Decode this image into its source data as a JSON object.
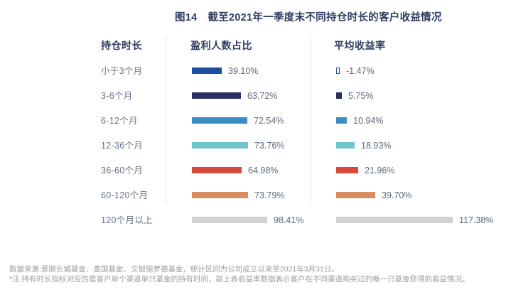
{
  "title": "图14　截至2021年一季度末不同持仓时长的客户收益情况",
  "columns": {
    "holding": "持仓时长",
    "profit_ratio": "盈利人数占比",
    "avg_return": "平均收益率"
  },
  "notes": {
    "source": "数据来源:景顺长城基金、富国基金、交银施罗德基金，统计区间为公司成立以来至2021年3月31日。",
    "footnote": "*注:持有时长指标对应的是客户单个渠道单只基金的持有时间，故上表收益率数据表示客户在不同渠道购买过的每一只基金获得的收益情况。"
  },
  "colors": {
    "title_text": "#303D63",
    "label_text": "#6A7389",
    "value_text": "#5E6979",
    "divider": "#E5E6EB",
    "note_text": "#9B9B9B"
  },
  "chart_data": {
    "type": "bar",
    "orientation": "horizontal",
    "title": "图14 截至2021年一季度末不同持仓时长的客户收益情况",
    "categories": [
      "小于3个月",
      "3-6个月",
      "6-12个月",
      "12-36个月",
      "36-60个月",
      "60-120个月",
      "120个月以上"
    ],
    "series": [
      {
        "name": "盈利人数占比",
        "values": [
          39.1,
          63.72,
          72.54,
          73.76,
          64.98,
          73.79,
          98.41
        ],
        "axis_max": 98.41
      },
      {
        "name": "平均收益率",
        "values": [
          -1.47,
          5.75,
          10.94,
          18.93,
          21.96,
          39.7,
          117.38
        ],
        "axis_max": 117.38
      }
    ],
    "bar_colors": [
      "#1C4E9D",
      "#2A3061",
      "#3C8DC6",
      "#6FC5CE",
      "#D8493B",
      "#D78E61",
      "#D2D2D3"
    ],
    "unit": "%",
    "value_format": "two_decimal_percent",
    "legend_position": "column-headers",
    "grid": false
  }
}
